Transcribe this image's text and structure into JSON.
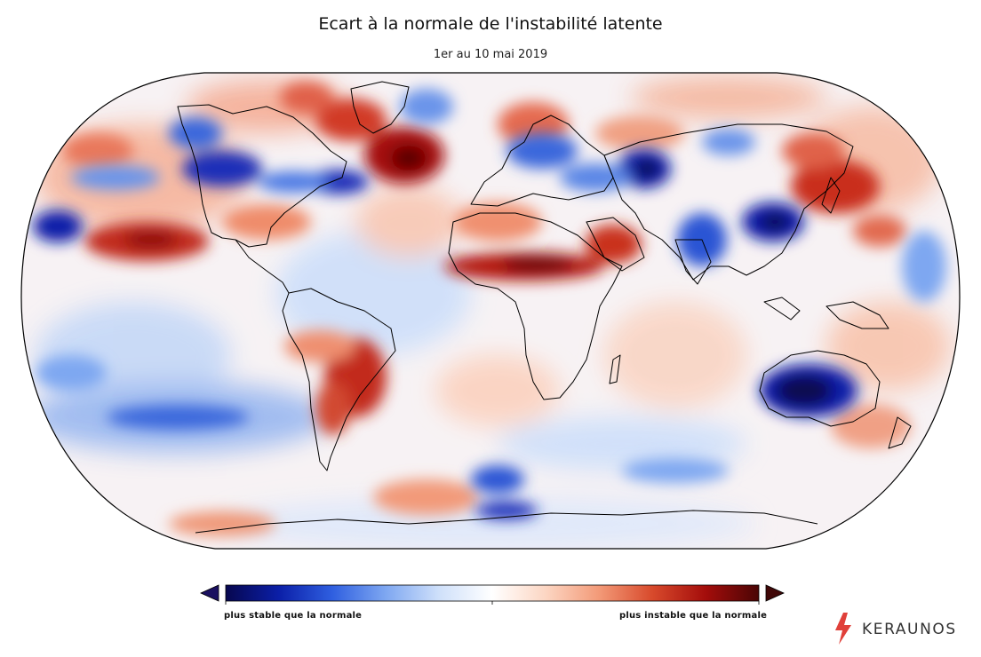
{
  "header": {
    "title": "Ecart à la normale de l'instabilité latente",
    "subtitle": "1er au 10 mai 2019"
  },
  "colorbar": {
    "left_label": "plus stable que la normale",
    "right_label": "plus instable que la normale",
    "colors": [
      "#07074f",
      "#0b1fa8",
      "#2f5fe0",
      "#7ea7f1",
      "#cfe0fa",
      "#ffffff",
      "#fcd6c3",
      "#f39a78",
      "#d84a2c",
      "#a40d0b",
      "#4a0505"
    ],
    "ext_low": "#1a1060",
    "ext_high": "#400808"
  },
  "brand": {
    "name": "KERAUNOS",
    "bolt_color": "#e0403a"
  },
  "map": {
    "projection": "Robinson",
    "field": "latent instability anomaly",
    "base_color": "#f7f2f4",
    "coast_color": "#000000",
    "anomaly_features": [
      {
        "region": "NE Atlantic / Greenland Sea",
        "sign": "unstable",
        "level": 1.0
      },
      {
        "region": "Iceland",
        "sign": "unstable",
        "level": 0.85
      },
      {
        "region": "Sahel",
        "sign": "unstable",
        "level": 0.95
      },
      {
        "region": "Arabia",
        "sign": "unstable",
        "level": 0.7
      },
      {
        "region": "South America (Paraguay / Brazil)",
        "sign": "unstable",
        "level": 0.85
      },
      {
        "region": "North Pacific subtropics",
        "sign": "unstable",
        "level": 0.85
      },
      {
        "region": "Japan / Korea",
        "sign": "unstable",
        "level": 0.8
      },
      {
        "region": "Western Europe",
        "sign": "unstable",
        "level": 0.6
      },
      {
        "region": "Australia",
        "sign": "stable",
        "level": 1.0
      },
      {
        "region": "Caspian Sea",
        "sign": "stable",
        "level": 0.9
      },
      {
        "region": "Eastern China",
        "sign": "stable",
        "level": 0.95
      },
      {
        "region": "Canadian Prairies",
        "sign": "stable",
        "level": 0.9
      },
      {
        "region": "Newfoundland",
        "sign": "stable",
        "level": 0.8
      },
      {
        "region": "Hawaii region",
        "sign": "stable",
        "level": 0.85
      },
      {
        "region": "India / Bangladesh",
        "sign": "stable",
        "level": 0.7
      },
      {
        "region": "Scandinavia / Baltic",
        "sign": "stable",
        "level": 0.6
      },
      {
        "region": "Southern Ocean",
        "sign": "stable",
        "level": 0.6
      }
    ]
  }
}
